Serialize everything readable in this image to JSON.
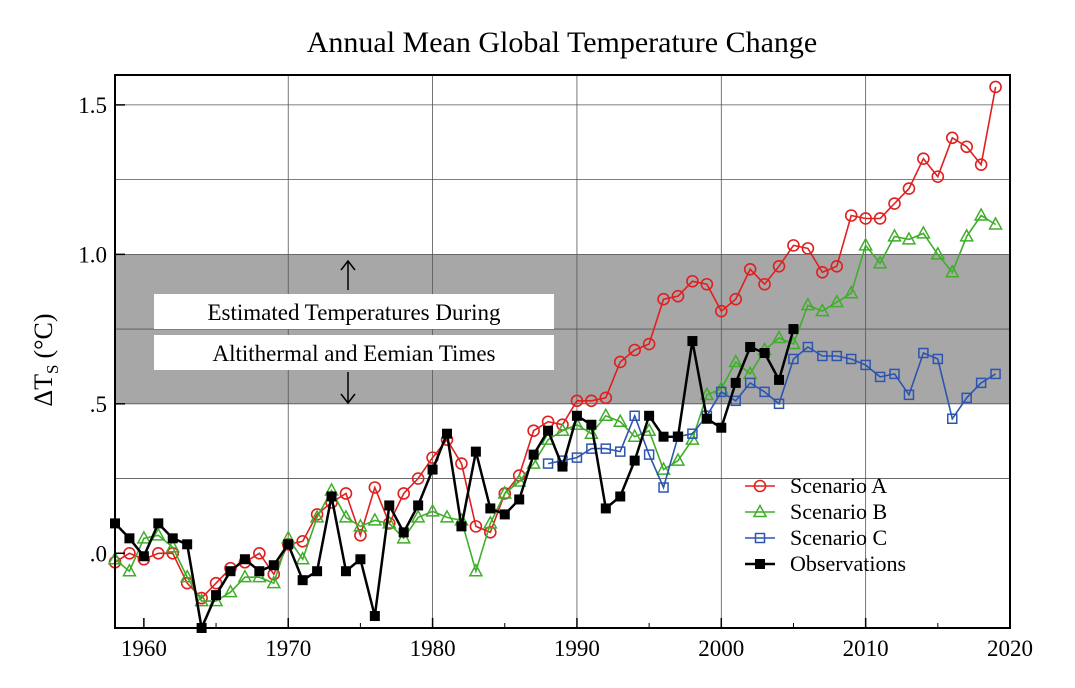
{
  "chart_data": {
    "type": "line",
    "title": "Annual Mean Global Temperature Change",
    "ylabel": "ΔT",
    "ylabel_sub": "S",
    "ylabel_unit": "(°C)",
    "xlim": [
      1958,
      2020
    ],
    "ylim": [
      -0.25,
      1.6
    ],
    "x_ticks": [
      1960,
      1970,
      1980,
      1990,
      2000,
      2010,
      2020
    ],
    "x_tick_labels": [
      "1960",
      "1970",
      "1980",
      "1990",
      "2000",
      "2010",
      "2020"
    ],
    "y_ticks": [
      0,
      0.5,
      1.0,
      1.5
    ],
    "y_tick_labels": [
      ".0",
      ".5",
      "1.0",
      "1.5"
    ],
    "grid": true,
    "legend_position": "bottom-right",
    "band": {
      "y_range": [
        0.5,
        1.0
      ],
      "color": "#a7a7a7",
      "label_lines": [
        "Estimated Temperatures During",
        "Altithermal and Eemian Times"
      ]
    },
    "series": [
      {
        "name": "Scenario A",
        "color": "#e02020",
        "marker": "circle",
        "x": [
          1958,
          1959,
          1960,
          1961,
          1962,
          1963,
          1964,
          1965,
          1966,
          1967,
          1968,
          1969,
          1970,
          1971,
          1972,
          1973,
          1974,
          1975,
          1976,
          1977,
          1978,
          1979,
          1980,
          1981,
          1982,
          1983,
          1984,
          1985,
          1986,
          1987,
          1988,
          1989,
          1990,
          1991,
          1992,
          1993,
          1994,
          1995,
          1996,
          1997,
          1998,
          1999,
          2000,
          2001,
          2002,
          2003,
          2004,
          2005,
          2006,
          2007,
          2008,
          2009,
          2010,
          2011,
          2012,
          2013,
          2014,
          2015,
          2016,
          2017,
          2018,
          2019
        ],
        "y": [
          -0.03,
          0.0,
          -0.02,
          0.0,
          0.0,
          -0.1,
          -0.15,
          -0.1,
          -0.05,
          -0.03,
          0.0,
          -0.07,
          0.03,
          0.04,
          0.13,
          0.17,
          0.2,
          0.06,
          0.22,
          0.1,
          0.2,
          0.25,
          0.32,
          0.38,
          0.3,
          0.09,
          0.07,
          0.2,
          0.26,
          0.41,
          0.44,
          0.43,
          0.51,
          0.51,
          0.52,
          0.64,
          0.68,
          0.7,
          0.85,
          0.86,
          0.91,
          0.9,
          0.81,
          0.85,
          0.95,
          0.9,
          0.96,
          1.03,
          1.02,
          0.94,
          0.96,
          1.13,
          1.12,
          1.12,
          1.17,
          1.22,
          1.32,
          1.26,
          1.39,
          1.36,
          1.3,
          1.56
        ]
      },
      {
        "name": "Scenario B",
        "color": "#3fae2a",
        "marker": "triangle",
        "x": [
          1958,
          1959,
          1960,
          1961,
          1962,
          1963,
          1964,
          1965,
          1966,
          1967,
          1968,
          1969,
          1970,
          1971,
          1972,
          1973,
          1974,
          1975,
          1976,
          1977,
          1978,
          1979,
          1980,
          1981,
          1982,
          1983,
          1984,
          1985,
          1986,
          1987,
          1988,
          1989,
          1990,
          1991,
          1992,
          1993,
          1994,
          1995,
          1996,
          1997,
          1998,
          1999,
          2000,
          2001,
          2002,
          2003,
          2004,
          2005,
          2006,
          2007,
          2008,
          2009,
          2010,
          2011,
          2012,
          2013,
          2014,
          2015,
          2016,
          2017,
          2018,
          2019
        ],
        "y": [
          -0.02,
          -0.06,
          0.05,
          0.06,
          0.02,
          -0.08,
          -0.16,
          -0.16,
          -0.13,
          -0.08,
          -0.08,
          -0.1,
          0.05,
          -0.02,
          0.12,
          0.21,
          0.12,
          0.09,
          0.11,
          0.1,
          0.05,
          0.12,
          0.14,
          0.12,
          0.11,
          -0.06,
          0.1,
          0.2,
          0.24,
          0.3,
          0.38,
          0.41,
          0.43,
          0.4,
          0.46,
          0.44,
          0.39,
          0.41,
          0.28,
          0.31,
          0.38,
          0.53,
          0.55,
          0.64,
          0.6,
          0.68,
          0.72,
          0.7,
          0.83,
          0.81,
          0.84,
          0.87,
          1.03,
          0.97,
          1.06,
          1.05,
          1.07,
          1.0,
          0.94,
          1.06,
          1.13,
          1.1
        ]
      },
      {
        "name": "Scenario C",
        "color": "#2d55b0",
        "marker": "square",
        "x": [
          1988,
          1989,
          1990,
          1991,
          1992,
          1993,
          1994,
          1995,
          1996,
          1997,
          1998,
          1999,
          2000,
          2001,
          2002,
          2003,
          2004,
          2005,
          2006,
          2007,
          2008,
          2009,
          2010,
          2011,
          2012,
          2013,
          2014,
          2015,
          2016,
          2017,
          2018,
          2019
        ],
        "y": [
          0.3,
          0.31,
          0.32,
          0.35,
          0.35,
          0.34,
          0.46,
          0.33,
          0.22,
          0.39,
          0.4,
          0.46,
          0.54,
          0.51,
          0.57,
          0.54,
          0.5,
          0.65,
          0.69,
          0.66,
          0.66,
          0.65,
          0.63,
          0.59,
          0.6,
          0.53,
          0.67,
          0.65,
          0.45,
          0.52,
          0.57,
          0.6
        ]
      },
      {
        "name": "Observations",
        "color": "#000000",
        "marker": "filled-square",
        "x": [
          1958,
          1959,
          1960,
          1961,
          1962,
          1963,
          1964,
          1965,
          1966,
          1967,
          1968,
          1969,
          1970,
          1971,
          1972,
          1973,
          1974,
          1975,
          1976,
          1977,
          1978,
          1979,
          1980,
          1981,
          1982,
          1983,
          1984,
          1985,
          1986,
          1987,
          1988,
          1989,
          1990,
          1991,
          1992,
          1993,
          1994,
          1995,
          1996,
          1997,
          1998,
          1999,
          2000,
          2001,
          2002,
          2003,
          2004,
          2005
        ],
        "y": [
          0.1,
          0.05,
          -0.01,
          0.1,
          0.05,
          0.03,
          -0.25,
          -0.14,
          -0.06,
          -0.02,
          -0.06,
          -0.04,
          0.03,
          -0.09,
          -0.06,
          0.19,
          -0.06,
          -0.02,
          -0.21,
          0.16,
          0.07,
          0.16,
          0.28,
          0.4,
          0.09,
          0.34,
          0.15,
          0.13,
          0.18,
          0.33,
          0.41,
          0.29,
          0.46,
          0.43,
          0.15,
          0.19,
          0.31,
          0.46,
          0.39,
          0.39,
          0.71,
          0.45,
          0.42,
          0.57,
          0.69,
          0.67,
          0.58,
          0.75
        ]
      }
    ]
  }
}
